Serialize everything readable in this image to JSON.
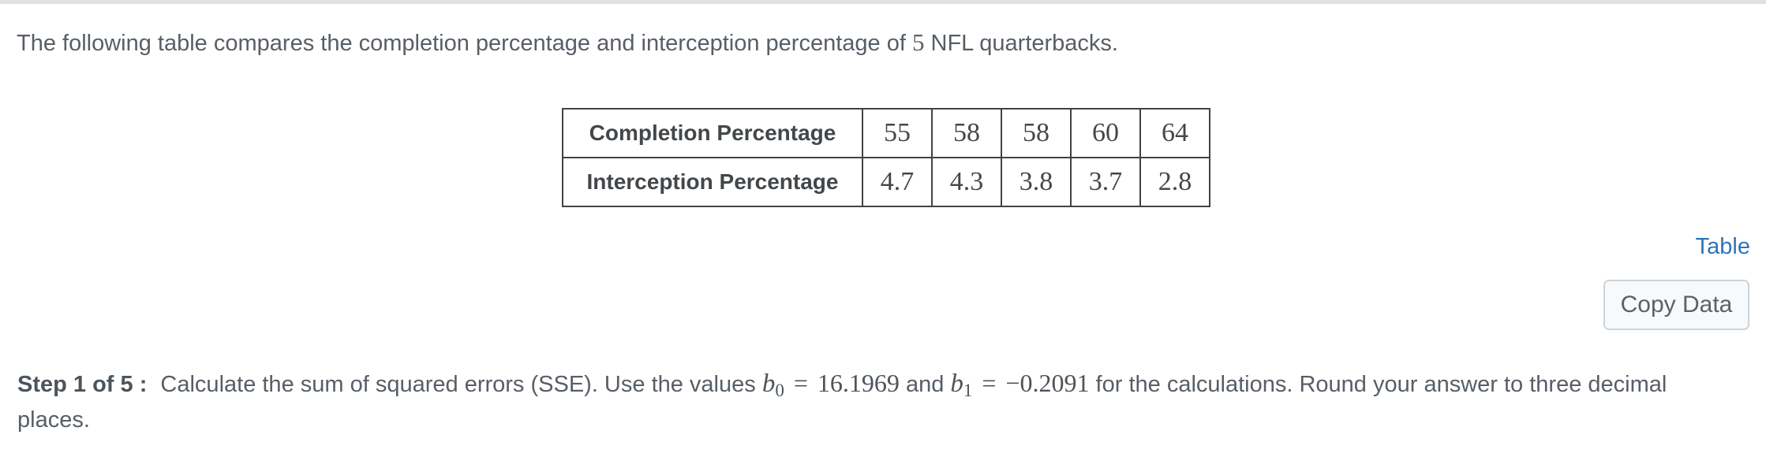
{
  "intro": {
    "before": "The following table compares the completion percentage and interception percentage of",
    "count": "5",
    "after": "NFL quarterbacks."
  },
  "table": {
    "rows": [
      {
        "label": "Completion Percentage",
        "values": [
          "55",
          "58",
          "58",
          "60",
          "64"
        ]
      },
      {
        "label": "Interception Percentage",
        "values": [
          "4.7",
          "4.3",
          "3.8",
          "3.7",
          "2.8"
        ]
      }
    ]
  },
  "links": {
    "table_label": "Table"
  },
  "buttons": {
    "copy_data_label": "Copy Data"
  },
  "step": {
    "label": "Step 1 of 5 :",
    "part1": "Calculate the sum of squared errors (SSE). Use the values",
    "b0": {
      "var": "b",
      "sub": "0",
      "rel": "=",
      "value": "16.1969"
    },
    "and": "and",
    "b1": {
      "var": "b",
      "sub": "1",
      "rel": "=",
      "value": "−0.2091"
    },
    "part2": "for the calculations. Round your answer to three decimal",
    "part3": "places."
  },
  "colors": {
    "link_blue": "#2e74b6",
    "body_text": "#575e66",
    "table_border": "#3f4347",
    "button_border": "#ccd4da",
    "button_bg": "#f8f9fa",
    "top_bar": "#e1e1e1"
  }
}
